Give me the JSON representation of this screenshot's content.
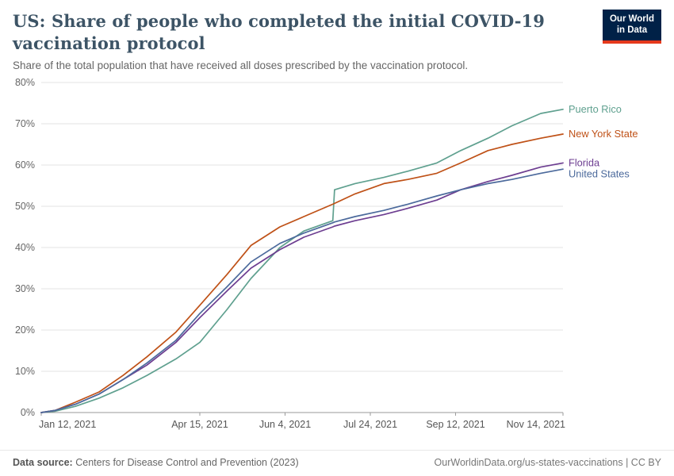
{
  "header": {
    "title": "US: Share of people who completed the initial COVID-19 vaccination protocol",
    "subtitle": "Share of the total population that have received all doses prescribed by the vaccination protocol.",
    "logo": {
      "line1": "Our World",
      "line2": "in Data"
    }
  },
  "footer": {
    "source_label": "Data source:",
    "source_text": "Centers for Disease Control and Prevention (2023)",
    "credit": "OurWorldinData.org/us-states-vaccinations | CC BY"
  },
  "colors": {
    "brand_navy": "#002147",
    "brand_red": "#e5391c",
    "grid": "#e3e3e3",
    "axis": "#9a9a9a",
    "tick_text": "#666666"
  },
  "chart_data": {
    "type": "line",
    "title": "US: Share of people who completed the initial COVID-19 vaccination protocol",
    "xlabel": "",
    "ylabel": "",
    "ylim": [
      0,
      80
    ],
    "y_ticks": [
      0,
      10,
      20,
      30,
      40,
      50,
      60,
      70,
      80
    ],
    "y_tick_suffix": "%",
    "grid": true,
    "legend_position": "right-end-labels",
    "x_ticks": [
      {
        "date": "2021-01-12",
        "label": "Jan 12, 2021"
      },
      {
        "date": "2021-04-15",
        "label": "Apr 15, 2021"
      },
      {
        "date": "2021-06-04",
        "label": "Jun 4, 2021"
      },
      {
        "date": "2021-07-24",
        "label": "Jul 24, 2021"
      },
      {
        "date": "2021-09-12",
        "label": "Sep 12, 2021"
      },
      {
        "date": "2021-11-14",
        "label": "Nov 14, 2021"
      }
    ],
    "dates": [
      "2021-01-12",
      "2021-01-20",
      "2021-02-01",
      "2021-02-15",
      "2021-03-01",
      "2021-03-15",
      "2021-04-01",
      "2021-04-15",
      "2021-05-01",
      "2021-05-15",
      "2021-06-01",
      "2021-06-15",
      "2021-07-02",
      "2021-07-03",
      "2021-07-15",
      "2021-08-01",
      "2021-08-15",
      "2021-09-01",
      "2021-09-15",
      "2021-10-01",
      "2021-10-15",
      "2021-11-01",
      "2021-11-14"
    ],
    "series": [
      {
        "name": "Puerto Rico",
        "color": "#5fa08f",
        "values": [
          0,
          0.3,
          1.5,
          3.5,
          6,
          9,
          13,
          17,
          25,
          32.5,
          40,
          44,
          46.5,
          54,
          55.5,
          57,
          58.5,
          60.5,
          63.5,
          66.5,
          69.5,
          72.5,
          73.5
        ]
      },
      {
        "name": "New York State",
        "color": "#bf5117",
        "values": [
          0,
          0.5,
          2.5,
          5,
          9,
          13.5,
          19.5,
          26,
          33.5,
          40.5,
          45,
          47.5,
          50.5,
          50.7,
          53,
          55.5,
          56.5,
          58,
          60.5,
          63.5,
          65,
          66.5,
          67.5
        ]
      },
      {
        "name": "Florida",
        "color": "#6d3e91",
        "values": [
          0,
          0.5,
          2,
          4.5,
          8,
          11.5,
          17,
          23,
          29.5,
          35,
          39.5,
          42.5,
          45,
          45.2,
          46.5,
          48,
          49.5,
          51.5,
          54,
          56,
          57.5,
          59.5,
          60.5
        ]
      },
      {
        "name": "United States",
        "color": "#4c6a9c",
        "values": [
          0,
          0.5,
          2,
          4.5,
          8,
          12,
          17.5,
          24,
          30.5,
          36.5,
          41,
          43.5,
          46,
          46.2,
          47.5,
          49,
          50.5,
          52.5,
          54,
          55.5,
          56.5,
          58,
          59
        ]
      }
    ]
  }
}
